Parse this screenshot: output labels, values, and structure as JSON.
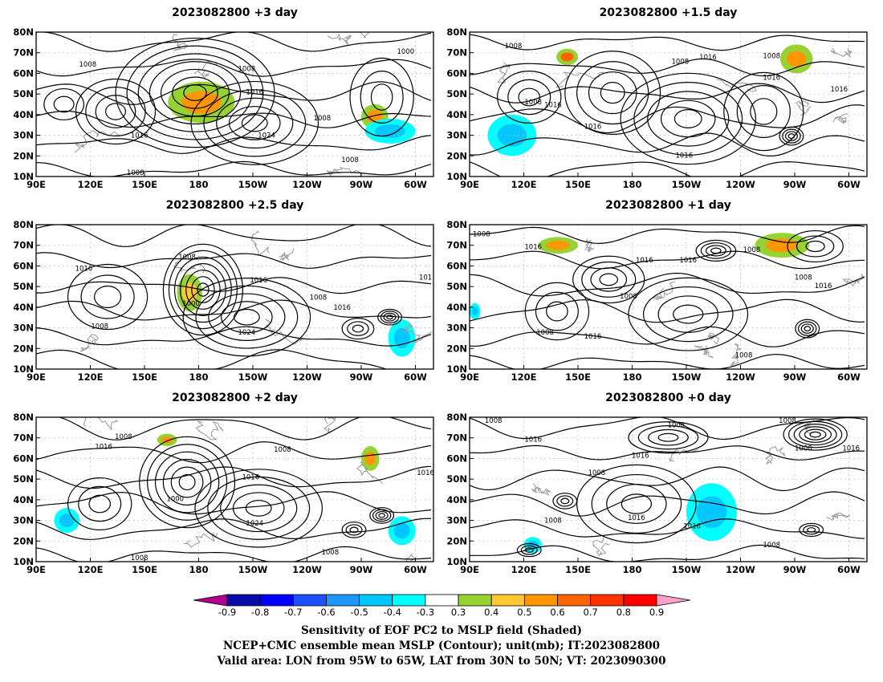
{
  "chart_data": [
    {
      "type": "contour",
      "title": "2023082800 +3 day",
      "xticks": [
        "90E",
        "120E",
        "150E",
        "180",
        "150W",
        "120W",
        "90W",
        "60W"
      ],
      "yticks": [
        "10N",
        "20N",
        "30N",
        "40N",
        "50N",
        "60N",
        "70N",
        "80N"
      ],
      "isobar_labels": [
        "1016",
        "1024",
        "1008",
        "1016",
        "1008",
        "1000",
        "1008",
        "1008",
        "1008"
      ],
      "shaded_regions": [
        {
          "sign": "positive",
          "lon": [
            163,
            200
          ],
          "lat": [
            36,
            56
          ],
          "level": 0.5
        },
        {
          "sign": "positive",
          "lon": [
            270,
            285
          ],
          "lat": [
            33,
            45
          ],
          "level": 0.5
        },
        {
          "sign": "negative",
          "lon": [
            272,
            300
          ],
          "lat": [
            26,
            38
          ],
          "level": -0.4
        }
      ]
    },
    {
      "type": "contour",
      "title": "2023082800 +1.5 day",
      "xticks": [
        "90E",
        "120E",
        "150E",
        "180",
        "150W",
        "120W",
        "90W",
        "60W"
      ],
      "yticks": [
        "10N",
        "20N",
        "30N",
        "40N",
        "50N",
        "60N",
        "70N",
        "80N"
      ],
      "isobar_labels": [
        "1008",
        "1008",
        "1016",
        "1008",
        "1016",
        "1008",
        "1016",
        "1016",
        "1016",
        "1016"
      ],
      "shaded_regions": [
        {
          "sign": "positive",
          "lon": [
            138,
            150
          ],
          "lat": [
            64,
            72
          ],
          "level": 0.6
        },
        {
          "sign": "positive",
          "lon": [
            262,
            280
          ],
          "lat": [
            60,
            74
          ],
          "level": 0.5
        },
        {
          "sign": "negative",
          "lon": [
            100,
            127
          ],
          "lat": [
            20,
            40
          ],
          "level": -0.4
        }
      ]
    },
    {
      "type": "contour",
      "title": "2023082800 +2.5 day",
      "xticks": [
        "90E",
        "120E",
        "150E",
        "180",
        "150W",
        "120W",
        "90W",
        "60W"
      ],
      "yticks": [
        "10N",
        "20N",
        "30N",
        "40N",
        "50N",
        "60N",
        "70N",
        "80N"
      ],
      "isobar_labels": [
        "1016",
        "1008",
        "1000",
        "1016",
        "1024",
        "1008",
        "1016",
        "1008",
        "101"
      ],
      "shaded_regions": [
        {
          "sign": "positive",
          "lon": [
            168,
            182
          ],
          "lat": [
            38,
            56
          ],
          "level": 0.4
        },
        {
          "sign": "negative",
          "lon": [
            285,
            300
          ],
          "lat": [
            16,
            34
          ],
          "level": -0.4
        }
      ]
    },
    {
      "type": "contour",
      "title": "2023082800 +1 day",
      "xticks": [
        "90E",
        "120E",
        "150E",
        "180",
        "150W",
        "120W",
        "90W",
        "60W"
      ],
      "yticks": [
        "10N",
        "20N",
        "30N",
        "40N",
        "50N",
        "60N",
        "70N",
        "80N"
      ],
      "isobar_labels": [
        "1008",
        "1016",
        "1016",
        "1016",
        "1008",
        "1008",
        "1016",
        "1008",
        "1008",
        "1016",
        "1008"
      ],
      "shaded_regions": [
        {
          "sign": "positive",
          "lon": [
            128,
            150
          ],
          "lat": [
            66,
            74
          ],
          "level": 0.5
        },
        {
          "sign": "positive",
          "lon": [
            248,
            278
          ],
          "lat": [
            64,
            76
          ],
          "level": 0.5
        },
        {
          "sign": "negative",
          "lon": [
            90,
            96
          ],
          "lat": [
            34,
            42
          ],
          "level": -0.4
        }
      ]
    },
    {
      "type": "contour",
      "title": "2023082800 +2 day",
      "xticks": [
        "90E",
        "120E",
        "150E",
        "180",
        "150W",
        "120W",
        "90W",
        "60W"
      ],
      "yticks": [
        "10N",
        "20N",
        "30N",
        "40N",
        "50N",
        "60N",
        "70N",
        "80N"
      ],
      "isobar_labels": [
        "1008",
        "1016",
        "1008",
        "1016",
        "1000",
        "1024",
        "1016",
        "1008",
        "1008"
      ],
      "shaded_regions": [
        {
          "sign": "positive",
          "lon": [
            157,
            168
          ],
          "lat": [
            66,
            72
          ],
          "level": 0.5
        },
        {
          "sign": "positive",
          "lon": [
            270,
            280
          ],
          "lat": [
            54,
            66
          ],
          "level": 0.5
        },
        {
          "sign": "negative",
          "lon": [
            285,
            300
          ],
          "lat": [
            18,
            32
          ],
          "level": -0.4
        },
        {
          "sign": "negative",
          "lon": [
            100,
            114
          ],
          "lat": [
            24,
            36
          ],
          "level": -0.4
        }
      ]
    },
    {
      "type": "contour",
      "title": "2023082800 +0 day",
      "xticks": [
        "90E",
        "120E",
        "150E",
        "180",
        "150W",
        "120W",
        "90W",
        "60W"
      ],
      "yticks": [
        "10N",
        "20N",
        "30N",
        "40N",
        "50N",
        "60N",
        "70N",
        "80N"
      ],
      "isobar_labels": [
        "1008",
        "1016",
        "1008",
        "1016",
        "1008",
        "1008",
        "1016",
        "1016",
        "1008",
        "1000",
        "1016",
        "1008"
      ],
      "shaded_regions": [
        {
          "sign": "negative",
          "lon": [
            210,
            238
          ],
          "lat": [
            20,
            48
          ],
          "level": -0.4
        },
        {
          "sign": "negative",
          "lon": [
            120,
            130
          ],
          "lat": [
            14,
            22
          ],
          "level": -0.4
        }
      ]
    }
  ],
  "colorbar": {
    "labels": [
      "-0.9",
      "-0.8",
      "-0.7",
      "-0.6",
      "-0.5",
      "-0.4",
      "-0.3",
      "0.3",
      "0.4",
      "0.5",
      "0.6",
      "0.7",
      "0.8",
      "0.9"
    ],
    "colors": [
      "#b2008f",
      "#0a0aa8",
      "#0000ff",
      "#1e50ff",
      "#1e96ff",
      "#00c8ff",
      "#00ffff",
      "#ffffff",
      "#96d232",
      "#ffc832",
      "#ff9600",
      "#ff6400",
      "#ff3200",
      "#ff0000",
      "#ffa0c8"
    ]
  },
  "caption": [
    "Sensitivity of EOF PC2 to MSLP field (Shaded)",
    "NCEP+CMC ensemble mean MSLP (Contour); unit(mb); IT:2023082800",
    "Valid area: LON from 95W to 65W, LAT from 30N to 50N; VT: 2023090300"
  ],
  "colors": {
    "contour": "#000000",
    "coastline": "#a0a0a0",
    "grid": "#b4b4b4"
  }
}
